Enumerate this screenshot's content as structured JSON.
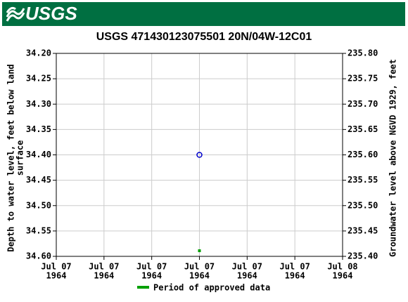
{
  "header": {
    "logo": "USGS"
  },
  "chart_data": {
    "type": "scatter",
    "title": "USGS 471430123075501 20N/04W-12C01",
    "ylabel": [
      "Depth to water level, feet below land",
      "surface"
    ],
    "y2label": "Groundwater level above NGVD 1929, feet",
    "categories": [
      [
        "Jul 07",
        "1964"
      ],
      [
        "Jul 07",
        "1964"
      ],
      [
        "Jul 07",
        "1964"
      ],
      [
        "Jul 07",
        "1964"
      ],
      [
        "Jul 07",
        "1964"
      ],
      [
        "Jul 07",
        "1964"
      ],
      [
        "Jul 08",
        "1964"
      ]
    ],
    "values": [
      null,
      null,
      null,
      34.4,
      null,
      null,
      null
    ],
    "color": "#0000cc",
    "ylim": [
      34.2,
      34.6
    ],
    "invert_y": true,
    "yticks": [
      {
        "value": 34.2,
        "label": "34.20"
      },
      {
        "value": 34.25,
        "label": "34.25"
      },
      {
        "value": 34.3,
        "label": "34.30"
      },
      {
        "value": 34.35,
        "label": "34.35"
      },
      {
        "value": 34.4,
        "label": "34.40"
      },
      {
        "value": 34.45,
        "label": "34.45"
      },
      {
        "value": 34.5,
        "label": "34.50"
      },
      {
        "value": 34.55,
        "label": "34.55"
      },
      {
        "value": 34.6,
        "label": "34.60"
      }
    ],
    "y2lim": [
      235.4,
      235.8
    ],
    "y2ticks": [
      {
        "value": 235.8,
        "label": "235.80"
      },
      {
        "value": 235.75,
        "label": "235.75"
      },
      {
        "value": 235.7,
        "label": "235.70"
      },
      {
        "value": 235.65,
        "label": "235.65"
      },
      {
        "value": 235.6,
        "label": "235.60"
      },
      {
        "value": 235.55,
        "label": "235.55"
      },
      {
        "value": 235.5,
        "label": "235.50"
      },
      {
        "value": 235.45,
        "label": "235.45"
      },
      {
        "value": 235.4,
        "label": "235.40"
      }
    ],
    "grid": true,
    "approved_period": {
      "name": "Period of approved data",
      "color": "#00a000"
    }
  }
}
